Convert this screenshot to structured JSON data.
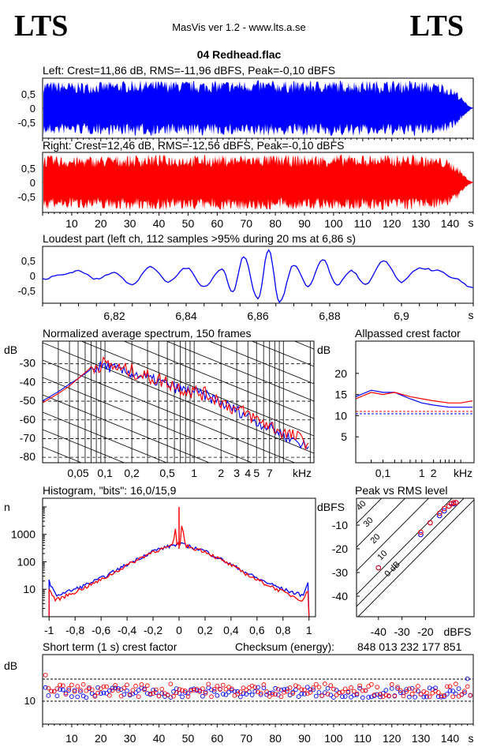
{
  "header": {
    "logo_left": "LTS",
    "logo_right": "LTS",
    "app_title": "MasVis ver 1.2 - www.lts.a.se",
    "file_name": "04 Redhead.flac"
  },
  "colors": {
    "left": "#0000ff",
    "right": "#ff0000",
    "grid": "#000000"
  },
  "panels": {
    "left_waveform": {
      "title": "Left: Crest=11,86 dB, RMS=-11,96 dBFS, Peak=-0,10 dBFS",
      "yticks": [
        "0,5",
        "0",
        "-0,5"
      ]
    },
    "right_waveform": {
      "title": "Right: Crest=12,46 dB, RMS=-12,56 dBFS, Peak=-0,10 dBFS",
      "yticks": [
        "0,5",
        "0",
        "-0,5"
      ],
      "xticks": [
        "10",
        "20",
        "30",
        "40",
        "50",
        "60",
        "70",
        "80",
        "90",
        "100",
        "110",
        "120",
        "130",
        "140"
      ],
      "xunit": "s"
    },
    "loudest": {
      "title": "Loudest part (left  ch, 112 samples >95% during 20 ms at 6,86 s)",
      "yticks": [
        "0,5",
        "0",
        "-0,5"
      ],
      "xticks": [
        "6,82",
        "6,84",
        "6,86",
        "6,88",
        "6,9"
      ],
      "xunit": "s"
    },
    "spectrum": {
      "title": "Normalized average spectrum, 150 frames",
      "yunit": "dB",
      "yticks": [
        "-30",
        "-40",
        "-50",
        "-60",
        "-70",
        "-80"
      ],
      "xticks": [
        "0,05",
        "0,1",
        "0,2",
        "0,5",
        "1",
        "2",
        "3",
        "4",
        "5",
        "7"
      ],
      "xunit": "kHz"
    },
    "allpass": {
      "title": "Allpassed crest factor",
      "yunit": "dB",
      "yticks": [
        "20",
        "15",
        "10",
        "5"
      ],
      "xticks": [
        "0,1",
        "1",
        "2"
      ],
      "xunit": "kHz"
    },
    "histogram": {
      "title": "Histogram, \"bits\": 16,0/15,9",
      "yunit": "n",
      "yticks": [
        "1000",
        "100",
        "10"
      ],
      "xticks": [
        "-1",
        "-0,8",
        "-0,6",
        "-0,4",
        "-0,2",
        "0",
        "0,2",
        "0,4",
        "0,6",
        "0,8",
        "1"
      ]
    },
    "peak_rms": {
      "title": "Peak vs RMS level",
      "yunit": "dBFS",
      "yticks": [
        "-10",
        "-20",
        "-30",
        "-40"
      ],
      "xticks": [
        "-40",
        "-30",
        "-20"
      ],
      "xunit": "dBFS",
      "diag_labels": [
        "40",
        "30",
        "20",
        "10",
        "0 dB"
      ]
    },
    "crest": {
      "title": "Short term (1 s) crest factor",
      "checksum_label": "Checksum (energy):",
      "checksum_value": "848 013 232 177 851",
      "yunit": "dB",
      "yticks": [
        "10"
      ],
      "xticks": [
        "10",
        "20",
        "30",
        "40",
        "50",
        "60",
        "70",
        "80",
        "90",
        "100",
        "110",
        "120",
        "130",
        "140"
      ],
      "xunit": "s"
    }
  },
  "chart_data": [
    {
      "type": "area",
      "title": "Left: Crest=11,86 dB, RMS=-11,96 dBFS, Peak=-0,10 dBFS",
      "xlim": [
        0,
        148
      ],
      "ylim": [
        -1,
        1
      ],
      "envelope": [
        0.98,
        0.92,
        0.95,
        0.98,
        0.99,
        0.97,
        0.98,
        0.99,
        0.97,
        0.98,
        0.99,
        0.98,
        0.99,
        0.9,
        0.3
      ]
    },
    {
      "type": "area",
      "title": "Right: Crest=12,46 dB, RMS=-12,56 dBFS, Peak=-0,10 dBFS",
      "xlim": [
        0,
        148
      ],
      "ylim": [
        -1,
        1
      ],
      "envelope": [
        0.98,
        0.92,
        0.95,
        0.98,
        0.99,
        0.97,
        0.98,
        0.99,
        0.97,
        0.98,
        0.99,
        0.98,
        0.99,
        0.9,
        0.3
      ]
    },
    {
      "type": "line",
      "title": "Loudest part (left  ch, 112 samples >95% during 20 ms at 6,86 s)",
      "xlim": [
        6.8,
        6.92
      ],
      "ylim": [
        -1,
        1
      ],
      "x": [
        6.8,
        6.805,
        6.81,
        6.815,
        6.82,
        6.825,
        6.83,
        6.835,
        6.84,
        6.845,
        6.85,
        6.853,
        6.856,
        6.86,
        6.863,
        6.866,
        6.87,
        6.874,
        6.878,
        6.882,
        6.886,
        6.89,
        6.895,
        6.9,
        6.905,
        6.91,
        6.915,
        6.92
      ],
      "y": [
        -0.1,
        0.05,
        0.2,
        -0.1,
        0.15,
        -0.3,
        0.35,
        -0.2,
        0.3,
        -0.35,
        0.25,
        -0.55,
        0.7,
        -0.8,
        0.95,
        -0.9,
        0.4,
        -0.35,
        0.6,
        -0.3,
        0.2,
        -0.3,
        0.55,
        -0.2,
        0.3,
        0.2,
        -0.1,
        -0.4
      ]
    },
    {
      "type": "line",
      "title": "Normalized average spectrum, 150 frames",
      "xlabel": "kHz",
      "ylabel": "dB",
      "ylim": [
        -85,
        -20
      ],
      "x": [
        0.02,
        0.03,
        0.04,
        0.05,
        0.07,
        0.1,
        0.15,
        0.2,
        0.3,
        0.5,
        0.7,
        1,
        1.5,
        2,
        3,
        4,
        5,
        7,
        10,
        15,
        20
      ],
      "series": [
        {
          "name": "L",
          "values": [
            -52,
            -47,
            -43,
            -40,
            -35,
            -33,
            -36,
            -37,
            -40,
            -43,
            -46,
            -47,
            -50,
            -53,
            -57,
            -60,
            -63,
            -66,
            -70,
            -74,
            -78
          ]
        },
        {
          "name": "R",
          "values": [
            -53,
            -48,
            -44,
            -40,
            -34,
            -32,
            -35,
            -36,
            -39,
            -42,
            -45,
            -47,
            -49,
            -52,
            -57,
            -59,
            -62,
            -65,
            -69,
            -72,
            -75
          ]
        }
      ]
    },
    {
      "type": "line",
      "title": "Allpassed crest factor",
      "xlabel": "kHz",
      "ylabel": "dB",
      "ylim": [
        0,
        25
      ],
      "x": [
        0.02,
        0.05,
        0.1,
        0.2,
        0.5,
        1,
        2,
        5,
        10,
        20
      ],
      "series": [
        {
          "name": "L",
          "values": [
            14.5,
            16,
            15.5,
            15.5,
            14,
            13,
            12.5,
            12,
            12,
            12
          ]
        },
        {
          "name": "R",
          "values": [
            14,
            15.5,
            15,
            15.5,
            14.5,
            14,
            13.5,
            13,
            13,
            13.5
          ]
        }
      ],
      "reference_lines": [
        12.5,
        12
      ]
    },
    {
      "type": "line",
      "title": "Histogram, \"bits\": 16,0/15,9",
      "ylabel": "n",
      "xlim": [
        -1.05,
        1.05
      ],
      "x": [
        -1,
        -0.95,
        -0.8,
        -0.6,
        -0.4,
        -0.2,
        -0.05,
        0,
        0.05,
        0.2,
        0.4,
        0.6,
        0.8,
        0.95,
        1
      ],
      "series": [
        {
          "name": "L",
          "values": [
            20,
            6,
            10,
            25,
            80,
            250,
            400,
            450,
            400,
            250,
            80,
            25,
            10,
            6,
            20
          ]
        },
        {
          "name": "R",
          "values": [
            10,
            4,
            8,
            22,
            75,
            240,
            380,
            8000,
            380,
            240,
            75,
            22,
            8,
            4,
            10
          ]
        }
      ]
    },
    {
      "type": "scatter",
      "title": "Peak vs RMS level",
      "xlabel": "dBFS",
      "ylabel": "dBFS",
      "xlim": [
        -50,
        0
      ],
      "ylim": [
        -50,
        0
      ],
      "series": [
        {
          "name": "L",
          "points": [
            [
              -40,
              -28
            ],
            [
              -22,
              -14
            ],
            [
              -18,
              -9
            ],
            [
              -14,
              -6
            ],
            [
              -12,
              -4
            ],
            [
              -10,
              -2
            ],
            [
              -9,
              -1
            ],
            [
              -8,
              -1
            ],
            [
              -7,
              -0.5
            ]
          ]
        },
        {
          "name": "R",
          "points": [
            [
              -40,
              -28
            ],
            [
              -22,
              -13
            ],
            [
              -18,
              -9
            ],
            [
              -14,
              -5
            ],
            [
              -12,
              -3
            ],
            [
              -10,
              -2
            ],
            [
              -9,
              -1
            ],
            [
              -8,
              -0.5
            ],
            [
              -7,
              -0.5
            ]
          ]
        }
      ]
    },
    {
      "type": "scatter",
      "title": "Short term (1 s) crest factor",
      "ylabel": "dB",
      "xlim": [
        0,
        148
      ],
      "ylim": [
        5,
        20
      ],
      "reference_lines": [
        14,
        9
      ],
      "series": [
        {
          "name": "L",
          "mean": 11,
          "spread": 1.2
        },
        {
          "name": "R",
          "mean": 11.5,
          "spread": 1.5
        }
      ]
    }
  ]
}
